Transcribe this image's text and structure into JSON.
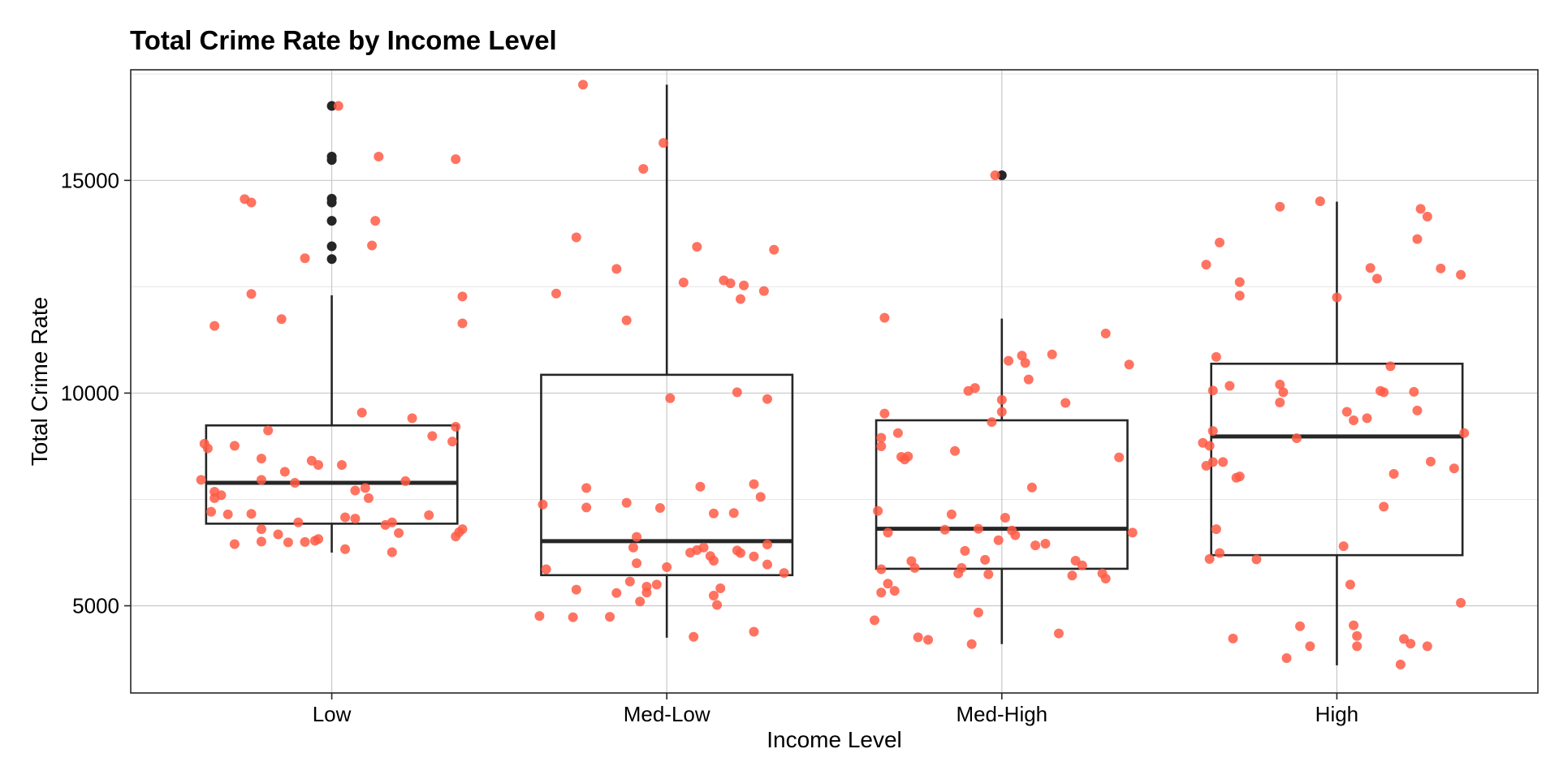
{
  "chart_data": {
    "type": "boxplot",
    "title": "Total Crime Rate by Income Level",
    "xlabel": "Income Level",
    "ylabel": "Total Crime Rate",
    "ylim": [
      2950,
      17600
    ],
    "yticks": [
      5000,
      10000,
      15000
    ],
    "grid": true,
    "legend": "none",
    "categories": [
      "Low",
      "Med-Low",
      "Med-High",
      "High"
    ],
    "colors": {
      "points": "#ff5a45",
      "box": "#262626",
      "outlier": "#262626"
    },
    "boxes": [
      {
        "category": "Low",
        "whisker_low": 6250,
        "q1": 6930,
        "median": 7890,
        "q3": 9240,
        "whisker_high": 12300,
        "outliers": [
          13150,
          13450,
          14050,
          14480,
          14570,
          15480,
          15560,
          16750
        ]
      },
      {
        "category": "Med-Low",
        "whisker_low": 4250,
        "q1": 5720,
        "median": 6520,
        "q3": 10430,
        "whisker_high": 17250,
        "outliers": []
      },
      {
        "category": "Med-High",
        "whisker_low": 4100,
        "q1": 5870,
        "median": 6810,
        "q3": 9360,
        "whisker_high": 11750,
        "outliers": [
          15120
        ]
      },
      {
        "category": "High",
        "whisker_low": 3600,
        "q1": 6190,
        "median": 8980,
        "q3": 10690,
        "whisker_high": 14500,
        "outliers": []
      }
    ],
    "points": [
      {
        "category": "Low",
        "values": [
          [
            -0.39,
            7960
          ],
          [
            -0.38,
            8810
          ],
          [
            -0.37,
            8700
          ],
          [
            -0.36,
            7210
          ],
          [
            -0.35,
            7530
          ],
          [
            -0.35,
            7680
          ],
          [
            -0.35,
            11580
          ],
          [
            -0.33,
            7600
          ],
          [
            -0.31,
            7150
          ],
          [
            -0.29,
            6450
          ],
          [
            -0.29,
            8760
          ],
          [
            -0.26,
            14560
          ],
          [
            -0.24,
            14480
          ],
          [
            -0.24,
            12330
          ],
          [
            -0.24,
            7160
          ],
          [
            -0.21,
            6800
          ],
          [
            -0.21,
            7960
          ],
          [
            -0.21,
            8460
          ],
          [
            -0.21,
            6510
          ],
          [
            -0.19,
            9120
          ],
          [
            -0.16,
            6680
          ],
          [
            -0.15,
            11740
          ],
          [
            -0.14,
            8150
          ],
          [
            -0.13,
            6490
          ],
          [
            -0.11,
            7890
          ],
          [
            -0.1,
            6960
          ],
          [
            -0.08,
            6500
          ],
          [
            -0.08,
            13170
          ],
          [
            -0.06,
            8410
          ],
          [
            -0.05,
            6530
          ],
          [
            -0.04,
            8310
          ],
          [
            -0.04,
            6570
          ],
          [
            0.02,
            16750
          ],
          [
            0.03,
            8310
          ],
          [
            0.04,
            7080
          ],
          [
            0.04,
            6330
          ],
          [
            0.07,
            7710
          ],
          [
            0.07,
            7050
          ],
          [
            0.09,
            9540
          ],
          [
            0.1,
            7770
          ],
          [
            0.11,
            7530
          ],
          [
            0.12,
            13470
          ],
          [
            0.13,
            14050
          ],
          [
            0.14,
            15560
          ],
          [
            0.16,
            6900
          ],
          [
            0.18,
            6960
          ],
          [
            0.18,
            6260
          ],
          [
            0.2,
            6710
          ],
          [
            0.22,
            7930
          ],
          [
            0.24,
            9410
          ],
          [
            0.29,
            7130
          ],
          [
            0.3,
            8990
          ],
          [
            0.36,
            8860
          ],
          [
            0.37,
            6630
          ],
          [
            0.37,
            9210
          ],
          [
            0.37,
            15500
          ],
          [
            0.38,
            6730
          ],
          [
            0.39,
            6800
          ],
          [
            0.39,
            11640
          ],
          [
            0.39,
            12270
          ]
        ]
      },
      {
        "category": "Med-Low",
        "values": [
          [
            -0.38,
            4760
          ],
          [
            -0.37,
            7380
          ],
          [
            -0.36,
            5860
          ],
          [
            -0.33,
            12340
          ],
          [
            -0.28,
            4730
          ],
          [
            -0.27,
            13660
          ],
          [
            -0.27,
            5380
          ],
          [
            -0.25,
            17250
          ],
          [
            -0.24,
            7770
          ],
          [
            -0.24,
            7310
          ],
          [
            -0.17,
            4740
          ],
          [
            -0.15,
            12920
          ],
          [
            -0.15,
            5300
          ],
          [
            -0.12,
            11710
          ],
          [
            -0.12,
            7420
          ],
          [
            -0.11,
            5570
          ],
          [
            -0.1,
            6370
          ],
          [
            -0.09,
            6000
          ],
          [
            -0.09,
            6620
          ],
          [
            -0.08,
            5100
          ],
          [
            -0.07,
            15270
          ],
          [
            -0.06,
            5450
          ],
          [
            -0.06,
            5310
          ],
          [
            -0.03,
            5500
          ],
          [
            -0.02,
            7300
          ],
          [
            -0.01,
            15880
          ],
          [
            0.0,
            5910
          ],
          [
            0.01,
            9880
          ],
          [
            0.05,
            12600
          ],
          [
            0.07,
            6250
          ],
          [
            0.08,
            4270
          ],
          [
            0.09,
            6310
          ],
          [
            0.09,
            13440
          ],
          [
            0.1,
            7800
          ],
          [
            0.11,
            6370
          ],
          [
            0.13,
            6170
          ],
          [
            0.14,
            7170
          ],
          [
            0.14,
            6060
          ],
          [
            0.14,
            5240
          ],
          [
            0.15,
            5020
          ],
          [
            0.16,
            5410
          ],
          [
            0.17,
            12650
          ],
          [
            0.19,
            12580
          ],
          [
            0.2,
            7180
          ],
          [
            0.21,
            6300
          ],
          [
            0.21,
            10020
          ],
          [
            0.22,
            6240
          ],
          [
            0.22,
            12210
          ],
          [
            0.23,
            12530
          ],
          [
            0.26,
            7860
          ],
          [
            0.26,
            4390
          ],
          [
            0.26,
            6160
          ],
          [
            0.28,
            7560
          ],
          [
            0.29,
            12400
          ],
          [
            0.3,
            6440
          ],
          [
            0.3,
            9860
          ],
          [
            0.3,
            5970
          ],
          [
            0.32,
            13370
          ],
          [
            0.35,
            5770
          ]
        ]
      },
      {
        "category": "Med-High",
        "values": [
          [
            -0.38,
            4660
          ],
          [
            -0.37,
            7230
          ],
          [
            -0.36,
            5860
          ],
          [
            -0.36,
            8750
          ],
          [
            -0.36,
            8950
          ],
          [
            -0.36,
            5310
          ],
          [
            -0.35,
            11770
          ],
          [
            -0.34,
            5520
          ],
          [
            -0.35,
            9520
          ],
          [
            -0.34,
            6720
          ],
          [
            -0.32,
            5350
          ],
          [
            -0.31,
            9060
          ],
          [
            -0.3,
            8500
          ],
          [
            -0.29,
            8440
          ],
          [
            -0.28,
            8510
          ],
          [
            -0.27,
            6050
          ],
          [
            -0.26,
            5890
          ],
          [
            -0.25,
            4260
          ],
          [
            -0.22,
            4200
          ],
          [
            -0.17,
            6790
          ],
          [
            -0.15,
            7150
          ],
          [
            -0.14,
            8640
          ],
          [
            -0.13,
            5760
          ],
          [
            -0.12,
            5890
          ],
          [
            -0.11,
            6290
          ],
          [
            -0.1,
            10050
          ],
          [
            -0.09,
            4100
          ],
          [
            -0.08,
            10120
          ],
          [
            -0.07,
            6810
          ],
          [
            -0.07,
            4840
          ],
          [
            -0.05,
            6080
          ],
          [
            -0.04,
            5740
          ],
          [
            -0.03,
            9320
          ],
          [
            -0.02,
            15120
          ],
          [
            -0.01,
            6540
          ],
          [
            0.0,
            9560
          ],
          [
            0.0,
            9840
          ],
          [
            0.01,
            7070
          ],
          [
            0.02,
            10760
          ],
          [
            0.03,
            6770
          ],
          [
            0.04,
            6660
          ],
          [
            0.06,
            10880
          ],
          [
            0.07,
            10710
          ],
          [
            0.08,
            10320
          ],
          [
            0.09,
            7780
          ],
          [
            0.1,
            6420
          ],
          [
            0.13,
            6460
          ],
          [
            0.15,
            10910
          ],
          [
            0.17,
            4350
          ],
          [
            0.19,
            9770
          ],
          [
            0.21,
            5710
          ],
          [
            0.22,
            6060
          ],
          [
            0.24,
            5950
          ],
          [
            0.3,
            5760
          ],
          [
            0.31,
            11400
          ],
          [
            0.31,
            5640
          ],
          [
            0.35,
            8490
          ],
          [
            0.38,
            10670
          ],
          [
            0.39,
            6720
          ]
        ]
      },
      {
        "category": "High",
        "values": [
          [
            -0.4,
            8830
          ],
          [
            -0.39,
            8290
          ],
          [
            -0.39,
            13020
          ],
          [
            -0.38,
            8760
          ],
          [
            -0.38,
            6100
          ],
          [
            -0.37,
            8380
          ],
          [
            -0.37,
            10060
          ],
          [
            -0.37,
            9110
          ],
          [
            -0.36,
            6800
          ],
          [
            -0.36,
            10850
          ],
          [
            -0.35,
            6240
          ],
          [
            -0.35,
            13540
          ],
          [
            -0.34,
            8380
          ],
          [
            -0.32,
            10170
          ],
          [
            -0.31,
            4230
          ],
          [
            -0.3,
            8010
          ],
          [
            -0.29,
            8040
          ],
          [
            -0.29,
            12610
          ],
          [
            -0.29,
            12290
          ],
          [
            -0.24,
            6090
          ],
          [
            -0.17,
            10200
          ],
          [
            -0.17,
            9780
          ],
          [
            -0.17,
            14380
          ],
          [
            -0.16,
            10020
          ],
          [
            -0.15,
            3770
          ],
          [
            -0.12,
            8940
          ],
          [
            -0.11,
            4520
          ],
          [
            -0.08,
            4050
          ],
          [
            -0.05,
            14510
          ],
          [
            0.0,
            12250
          ],
          [
            0.02,
            6400
          ],
          [
            0.03,
            9560
          ],
          [
            0.04,
            5500
          ],
          [
            0.05,
            9360
          ],
          [
            0.05,
            4540
          ],
          [
            0.06,
            4290
          ],
          [
            0.06,
            4050
          ],
          [
            0.09,
            9410
          ],
          [
            0.1,
            12940
          ],
          [
            0.12,
            12690
          ],
          [
            0.13,
            10050
          ],
          [
            0.14,
            10020
          ],
          [
            0.14,
            7330
          ],
          [
            0.16,
            10630
          ],
          [
            0.17,
            8100
          ],
          [
            0.19,
            3620
          ],
          [
            0.2,
            4220
          ],
          [
            0.22,
            4110
          ],
          [
            0.23,
            10030
          ],
          [
            0.24,
            9590
          ],
          [
            0.24,
            13620
          ],
          [
            0.25,
            14330
          ],
          [
            0.27,
            14150
          ],
          [
            0.27,
            4050
          ],
          [
            0.28,
            8390
          ],
          [
            0.31,
            12930
          ],
          [
            0.35,
            8230
          ],
          [
            0.37,
            12780
          ],
          [
            0.37,
            5070
          ],
          [
            0.38,
            9060
          ]
        ]
      }
    ]
  }
}
